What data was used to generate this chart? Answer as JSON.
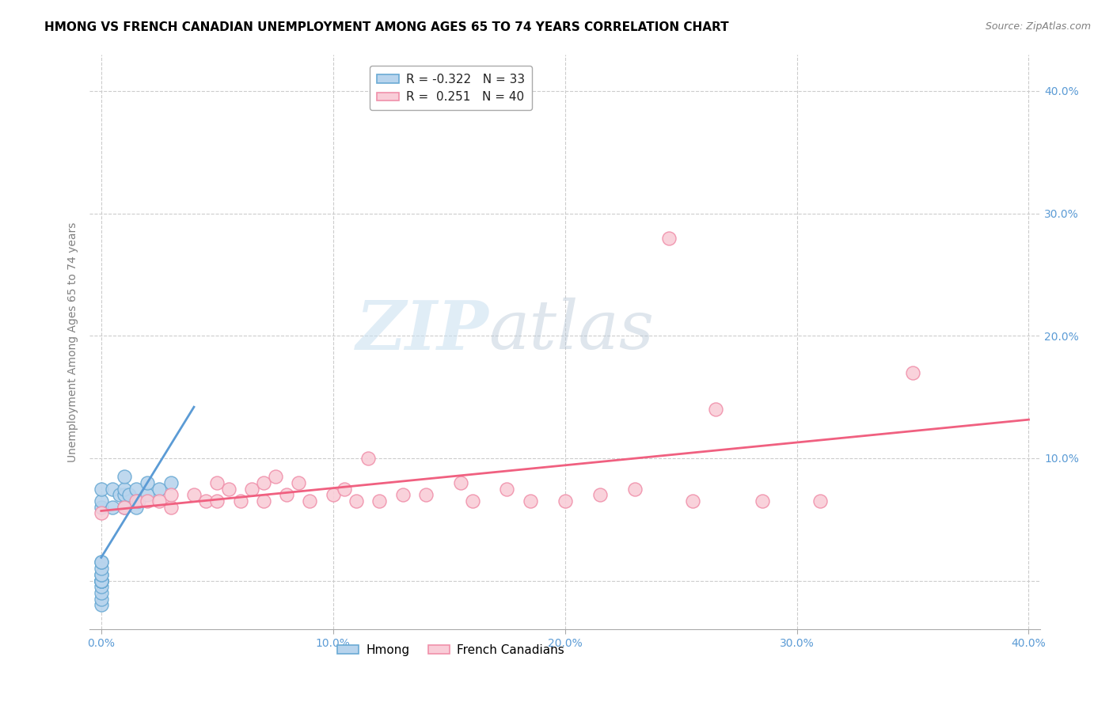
{
  "title": "HMONG VS FRENCH CANADIAN UNEMPLOYMENT AMONG AGES 65 TO 74 YEARS CORRELATION CHART",
  "source": "Source: ZipAtlas.com",
  "ylabel": "Unemployment Among Ages 65 to 74 years",
  "xlim": [
    -0.005,
    0.405
  ],
  "ylim": [
    -0.04,
    0.43
  ],
  "xticks": [
    0.0,
    0.1,
    0.2,
    0.3,
    0.4
  ],
  "xtick_labels": [
    "0.0%",
    "10.0%",
    "20.0%",
    "30.0%",
    "40.0%"
  ],
  "yticks": [
    0.0,
    0.1,
    0.2,
    0.3,
    0.4
  ],
  "ytick_labels": [
    "",
    "10.0%",
    "20.0%",
    "30.0%",
    "40.0%"
  ],
  "hmong_color": "#b8d4ed",
  "hmong_edge_color": "#6aaad4",
  "french_color": "#f9cdd8",
  "french_edge_color": "#f090aa",
  "hmong_trend_color": "#5b9bd5",
  "french_trend_color": "#f06080",
  "watermark_zip": "ZIP",
  "watermark_atlas": "atlas",
  "legend_r_hmong": "-0.322",
  "legend_n_hmong": "33",
  "legend_r_french": "0.251",
  "legend_n_french": "40",
  "legend_label_hmong": "Hmong",
  "legend_label_french": "French Canadians",
  "hmong_x": [
    0.0,
    0.0,
    0.0,
    0.0,
    0.0,
    0.0,
    0.0,
    0.0,
    0.0,
    0.0,
    0.0,
    0.0,
    0.0,
    0.0,
    0.0,
    0.0,
    0.0,
    0.0,
    0.005,
    0.005,
    0.008,
    0.01,
    0.01,
    0.01,
    0.01,
    0.012,
    0.015,
    0.015,
    0.016,
    0.02,
    0.02,
    0.025,
    0.03
  ],
  "hmong_y": [
    -0.02,
    -0.015,
    -0.01,
    -0.005,
    0.0,
    0.0,
    0.0,
    0.0,
    0.0,
    0.0,
    0.005,
    0.005,
    0.01,
    0.015,
    0.015,
    0.06,
    0.065,
    0.075,
    0.06,
    0.075,
    0.07,
    0.06,
    0.07,
    0.075,
    0.085,
    0.07,
    0.06,
    0.075,
    0.065,
    0.07,
    0.08,
    0.075,
    0.08
  ],
  "french_x": [
    0.0,
    0.01,
    0.015,
    0.02,
    0.025,
    0.03,
    0.03,
    0.04,
    0.045,
    0.05,
    0.05,
    0.055,
    0.06,
    0.065,
    0.07,
    0.07,
    0.075,
    0.08,
    0.085,
    0.09,
    0.1,
    0.105,
    0.11,
    0.115,
    0.12,
    0.13,
    0.14,
    0.155,
    0.16,
    0.175,
    0.185,
    0.2,
    0.215,
    0.23,
    0.245,
    0.255,
    0.265,
    0.285,
    0.31,
    0.35
  ],
  "french_y": [
    0.055,
    0.06,
    0.065,
    0.065,
    0.065,
    0.06,
    0.07,
    0.07,
    0.065,
    0.065,
    0.08,
    0.075,
    0.065,
    0.075,
    0.065,
    0.08,
    0.085,
    0.07,
    0.08,
    0.065,
    0.07,
    0.075,
    0.065,
    0.1,
    0.065,
    0.07,
    0.07,
    0.08,
    0.065,
    0.075,
    0.065,
    0.065,
    0.07,
    0.075,
    0.28,
    0.065,
    0.14,
    0.065,
    0.065,
    0.17
  ],
  "background_color": "#ffffff",
  "grid_color": "#cccccc",
  "title_fontsize": 11,
  "axis_tick_fontsize": 10,
  "ylabel_fontsize": 10
}
